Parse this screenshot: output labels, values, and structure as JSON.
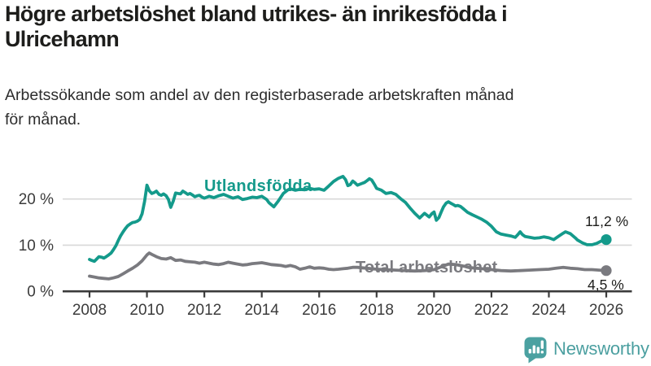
{
  "header": {
    "title": "Högre arbetslöshet bland utrikes- än inrikesfödda i\nUlricehamn",
    "subtitle": "Arbetssökande som andel av den registerbaserade arbetskraften månad\nför månad."
  },
  "chart_data": {
    "type": "line",
    "title": "Högre arbetslöshet bland utrikes- än inrikesfödda i Ulricehamn",
    "subtitle": "Arbetssökande som andel av den registerbaserade arbetskraften månad för månad.",
    "xlabel": "",
    "ylabel": "",
    "grid": "horizontal",
    "legend_position": "inline-labels",
    "x_range": [
      2007.1,
      2026.9
    ],
    "y_range": [
      0,
      29
    ],
    "x_ticks": [
      2008,
      2010,
      2012,
      2014,
      2016,
      2018,
      2020,
      2022,
      2024,
      2026
    ],
    "y_ticks": [
      [
        0,
        "0 %"
      ],
      [
        10,
        "10 %"
      ],
      [
        20,
        "20 %"
      ]
    ],
    "gridline_color": "#d8d8d8",
    "axis_color": "#3b3b3b",
    "series": [
      {
        "name": "Utlandsfödda",
        "color": "#149A8B",
        "end_value": 11.2,
        "end_label": "11,2 %",
        "points": [
          [
            2008.0,
            6.9
          ],
          [
            2008.08,
            6.7
          ],
          [
            2008.17,
            6.5
          ],
          [
            2008.25,
            7.0
          ],
          [
            2008.33,
            7.5
          ],
          [
            2008.42,
            7.4
          ],
          [
            2008.5,
            7.2
          ],
          [
            2008.58,
            7.5
          ],
          [
            2008.67,
            7.9
          ],
          [
            2008.75,
            8.3
          ],
          [
            2008.83,
            9.0
          ],
          [
            2008.92,
            9.9
          ],
          [
            2009.0,
            11.0
          ],
          [
            2009.08,
            12.0
          ],
          [
            2009.17,
            12.9
          ],
          [
            2009.25,
            13.6
          ],
          [
            2009.33,
            14.2
          ],
          [
            2009.42,
            14.6
          ],
          [
            2009.5,
            14.9
          ],
          [
            2009.58,
            15.0
          ],
          [
            2009.67,
            15.2
          ],
          [
            2009.75,
            15.6
          ],
          [
            2009.83,
            16.8
          ],
          [
            2009.92,
            19.5
          ],
          [
            2010.0,
            23.0
          ],
          [
            2010.08,
            21.8
          ],
          [
            2010.17,
            21.2
          ],
          [
            2010.25,
            21.4
          ],
          [
            2010.33,
            21.7
          ],
          [
            2010.42,
            21.0
          ],
          [
            2010.5,
            20.8
          ],
          [
            2010.58,
            21.1
          ],
          [
            2010.67,
            20.7
          ],
          [
            2010.75,
            19.9
          ],
          [
            2010.83,
            18.2
          ],
          [
            2010.92,
            19.6
          ],
          [
            2011.0,
            21.3
          ],
          [
            2011.08,
            21.2
          ],
          [
            2011.17,
            21.1
          ],
          [
            2011.25,
            21.7
          ],
          [
            2011.33,
            21.4
          ],
          [
            2011.42,
            21.0
          ],
          [
            2011.5,
            21.2
          ],
          [
            2011.58,
            20.9
          ],
          [
            2011.67,
            20.5
          ],
          [
            2011.75,
            20.7
          ],
          [
            2011.83,
            20.8
          ],
          [
            2011.92,
            20.4
          ],
          [
            2012.0,
            20.2
          ],
          [
            2012.17,
            20.6
          ],
          [
            2012.33,
            20.3
          ],
          [
            2012.5,
            20.7
          ],
          [
            2012.67,
            21.0
          ],
          [
            2012.83,
            20.6
          ],
          [
            2013.0,
            20.2
          ],
          [
            2013.17,
            20.5
          ],
          [
            2013.33,
            19.9
          ],
          [
            2013.5,
            20.1
          ],
          [
            2013.67,
            20.4
          ],
          [
            2013.83,
            20.3
          ],
          [
            2014.0,
            20.6
          ],
          [
            2014.17,
            19.9
          ],
          [
            2014.25,
            19.2
          ],
          [
            2014.42,
            18.3
          ],
          [
            2014.58,
            19.6
          ],
          [
            2014.75,
            21.2
          ],
          [
            2014.92,
            22.0
          ],
          [
            2015.0,
            22.2
          ],
          [
            2015.17,
            21.9
          ],
          [
            2015.33,
            22.1
          ],
          [
            2015.5,
            22.0
          ],
          [
            2015.67,
            22.3
          ],
          [
            2015.83,
            22.1
          ],
          [
            2016.0,
            22.2
          ],
          [
            2016.17,
            21.9
          ],
          [
            2016.33,
            22.8
          ],
          [
            2016.5,
            23.8
          ],
          [
            2016.67,
            24.5
          ],
          [
            2016.83,
            24.9
          ],
          [
            2016.92,
            24.2
          ],
          [
            2017.0,
            22.9
          ],
          [
            2017.08,
            23.1
          ],
          [
            2017.17,
            23.9
          ],
          [
            2017.25,
            23.5
          ],
          [
            2017.33,
            23.0
          ],
          [
            2017.42,
            23.2
          ],
          [
            2017.5,
            23.4
          ],
          [
            2017.58,
            23.6
          ],
          [
            2017.67,
            24.0
          ],
          [
            2017.75,
            24.4
          ],
          [
            2017.83,
            24.1
          ],
          [
            2017.92,
            23.2
          ],
          [
            2018.0,
            22.3
          ],
          [
            2018.17,
            21.9
          ],
          [
            2018.33,
            21.2
          ],
          [
            2018.5,
            21.4
          ],
          [
            2018.67,
            21.0
          ],
          [
            2018.83,
            20.1
          ],
          [
            2019.0,
            19.3
          ],
          [
            2019.17,
            18.0
          ],
          [
            2019.33,
            16.9
          ],
          [
            2019.5,
            15.9
          ],
          [
            2019.67,
            16.9
          ],
          [
            2019.83,
            16.1
          ],
          [
            2019.92,
            16.8
          ],
          [
            2020.0,
            17.2
          ],
          [
            2020.08,
            15.4
          ],
          [
            2020.17,
            16.0
          ],
          [
            2020.25,
            17.2
          ],
          [
            2020.33,
            18.3
          ],
          [
            2020.42,
            19.1
          ],
          [
            2020.5,
            19.4
          ],
          [
            2020.58,
            19.1
          ],
          [
            2020.67,
            18.8
          ],
          [
            2020.75,
            18.5
          ],
          [
            2020.83,
            18.6
          ],
          [
            2020.92,
            18.4
          ],
          [
            2021.0,
            18.0
          ],
          [
            2021.17,
            17.1
          ],
          [
            2021.33,
            16.6
          ],
          [
            2021.5,
            16.1
          ],
          [
            2021.67,
            15.6
          ],
          [
            2021.83,
            15.0
          ],
          [
            2022.0,
            14.1
          ],
          [
            2022.17,
            12.9
          ],
          [
            2022.33,
            12.4
          ],
          [
            2022.5,
            12.2
          ],
          [
            2022.67,
            12.0
          ],
          [
            2022.83,
            11.7
          ],
          [
            2022.92,
            12.3
          ],
          [
            2023.0,
            12.9
          ],
          [
            2023.08,
            12.3
          ],
          [
            2023.17,
            11.9
          ],
          [
            2023.33,
            11.7
          ],
          [
            2023.5,
            11.5
          ],
          [
            2023.67,
            11.6
          ],
          [
            2023.83,
            11.8
          ],
          [
            2024.0,
            11.6
          ],
          [
            2024.17,
            11.2
          ],
          [
            2024.33,
            11.9
          ],
          [
            2024.5,
            12.6
          ],
          [
            2024.58,
            12.9
          ],
          [
            2024.75,
            12.5
          ],
          [
            2024.92,
            11.6
          ],
          [
            2025.0,
            11.1
          ],
          [
            2025.17,
            10.5
          ],
          [
            2025.33,
            10.1
          ],
          [
            2025.5,
            10.1
          ],
          [
            2025.67,
            10.4
          ],
          [
            2025.83,
            10.9
          ],
          [
            2026.0,
            11.2
          ]
        ]
      },
      {
        "name": "Total arbetslöshet",
        "color": "#7A7A7F",
        "end_value": 4.5,
        "end_label": "4,5 %",
        "points": [
          [
            2008.0,
            3.3
          ],
          [
            2008.17,
            3.1
          ],
          [
            2008.33,
            2.9
          ],
          [
            2008.5,
            2.8
          ],
          [
            2008.67,
            2.7
          ],
          [
            2008.83,
            2.9
          ],
          [
            2009.0,
            3.2
          ],
          [
            2009.17,
            3.8
          ],
          [
            2009.33,
            4.4
          ],
          [
            2009.5,
            5.0
          ],
          [
            2009.67,
            5.7
          ],
          [
            2009.83,
            6.6
          ],
          [
            2010.0,
            7.9
          ],
          [
            2010.08,
            8.3
          ],
          [
            2010.17,
            8.0
          ],
          [
            2010.33,
            7.5
          ],
          [
            2010.5,
            7.1
          ],
          [
            2010.67,
            7.0
          ],
          [
            2010.83,
            7.3
          ],
          [
            2011.0,
            6.7
          ],
          [
            2011.17,
            6.8
          ],
          [
            2011.33,
            6.5
          ],
          [
            2011.5,
            6.4
          ],
          [
            2011.67,
            6.3
          ],
          [
            2011.83,
            6.1
          ],
          [
            2012.0,
            6.3
          ],
          [
            2012.17,
            6.1
          ],
          [
            2012.33,
            5.9
          ],
          [
            2012.5,
            5.8
          ],
          [
            2012.67,
            6.0
          ],
          [
            2012.83,
            6.3
          ],
          [
            2013.0,
            6.1
          ],
          [
            2013.17,
            5.9
          ],
          [
            2013.33,
            5.7
          ],
          [
            2013.5,
            5.8
          ],
          [
            2013.67,
            6.0
          ],
          [
            2013.83,
            6.1
          ],
          [
            2014.0,
            6.2
          ],
          [
            2014.17,
            6.0
          ],
          [
            2014.33,
            5.8
          ],
          [
            2014.5,
            5.7
          ],
          [
            2014.67,
            5.6
          ],
          [
            2014.83,
            5.4
          ],
          [
            2015.0,
            5.6
          ],
          [
            2015.17,
            5.3
          ],
          [
            2015.33,
            4.8
          ],
          [
            2015.5,
            5.0
          ],
          [
            2015.67,
            5.3
          ],
          [
            2015.83,
            5.0
          ],
          [
            2016.0,
            5.1
          ],
          [
            2016.17,
            5.0
          ],
          [
            2016.33,
            4.8
          ],
          [
            2016.5,
            4.7
          ],
          [
            2016.67,
            4.8
          ],
          [
            2016.83,
            4.9
          ],
          [
            2017.0,
            5.0
          ],
          [
            2017.17,
            5.2
          ],
          [
            2017.33,
            5.2
          ],
          [
            2017.5,
            5.1
          ],
          [
            2017.67,
            5.0
          ],
          [
            2017.83,
            4.9
          ],
          [
            2018.0,
            4.8
          ],
          [
            2018.33,
            4.7
          ],
          [
            2018.67,
            4.6
          ],
          [
            2019.0,
            4.5
          ],
          [
            2019.33,
            4.4
          ],
          [
            2019.67,
            4.5
          ],
          [
            2020.0,
            4.7
          ],
          [
            2020.25,
            5.3
          ],
          [
            2020.5,
            5.9
          ],
          [
            2020.75,
            5.8
          ],
          [
            2021.0,
            5.5
          ],
          [
            2021.33,
            5.1
          ],
          [
            2021.67,
            4.9
          ],
          [
            2022.0,
            4.7
          ],
          [
            2022.33,
            4.5
          ],
          [
            2022.67,
            4.4
          ],
          [
            2023.0,
            4.5
          ],
          [
            2023.33,
            4.6
          ],
          [
            2023.67,
            4.7
          ],
          [
            2024.0,
            4.8
          ],
          [
            2024.25,
            5.0
          ],
          [
            2024.5,
            5.2
          ],
          [
            2024.75,
            5.0
          ],
          [
            2025.0,
            4.9
          ],
          [
            2025.25,
            4.7
          ],
          [
            2025.5,
            4.7
          ],
          [
            2025.75,
            4.6
          ],
          [
            2026.0,
            4.5
          ]
        ]
      }
    ]
  },
  "footer": {
    "brand": "Newsworthy",
    "logo_icon": "speech-bubble-bar-chart-icon",
    "brand_color": "#4BA1A1"
  }
}
